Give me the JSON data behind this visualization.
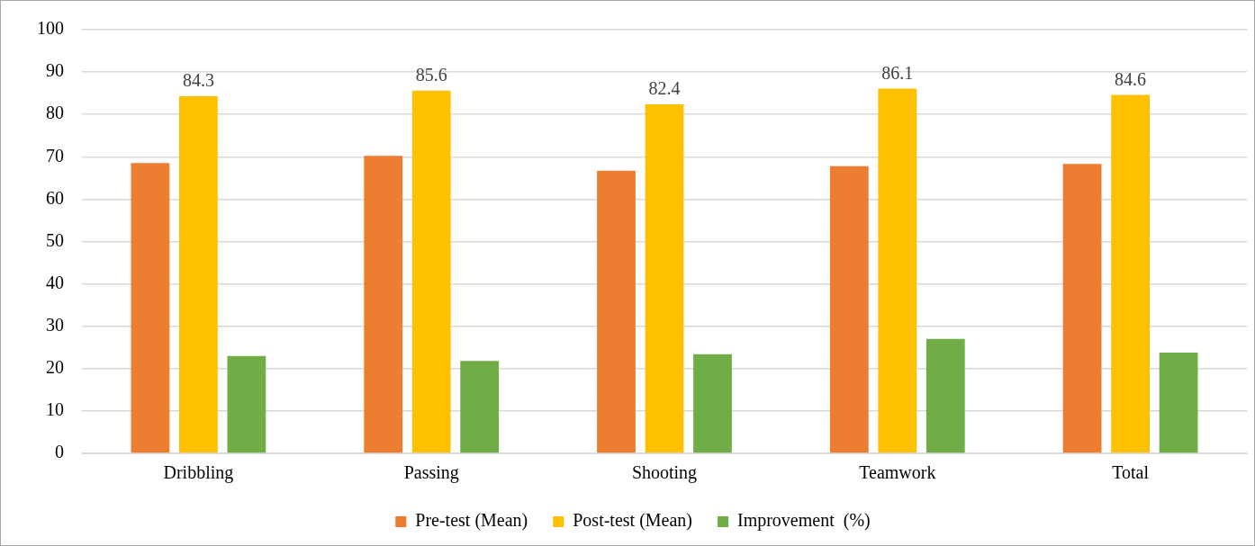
{
  "chart_data": {
    "type": "bar",
    "categories": [
      "Dribbling",
      "Passing",
      "Shooting",
      "Teamwork",
      "Total"
    ],
    "series": [
      {
        "name": "Pre-test (Mean)",
        "color": "#ed7d31",
        "values": [
          68.5,
          70.2,
          66.7,
          67.8,
          68.3
        ]
      },
      {
        "name": "Post-test (Mean)",
        "color": "#ffc000",
        "values": [
          84.3,
          85.6,
          82.4,
          86.1,
          84.6
        ],
        "value_labels": [
          "84.3",
          "85.6",
          "82.4",
          "86.1",
          "84.6"
        ]
      },
      {
        "name": "Improvement  (%)",
        "color": "#70ad47",
        "values": [
          23.0,
          21.8,
          23.4,
          27.0,
          23.8
        ]
      }
    ],
    "ylim": [
      0,
      100
    ],
    "yticks": [
      0,
      10,
      20,
      30,
      40,
      50,
      60,
      70,
      80,
      90,
      100
    ],
    "grid": "y",
    "legend": "bottom"
  }
}
